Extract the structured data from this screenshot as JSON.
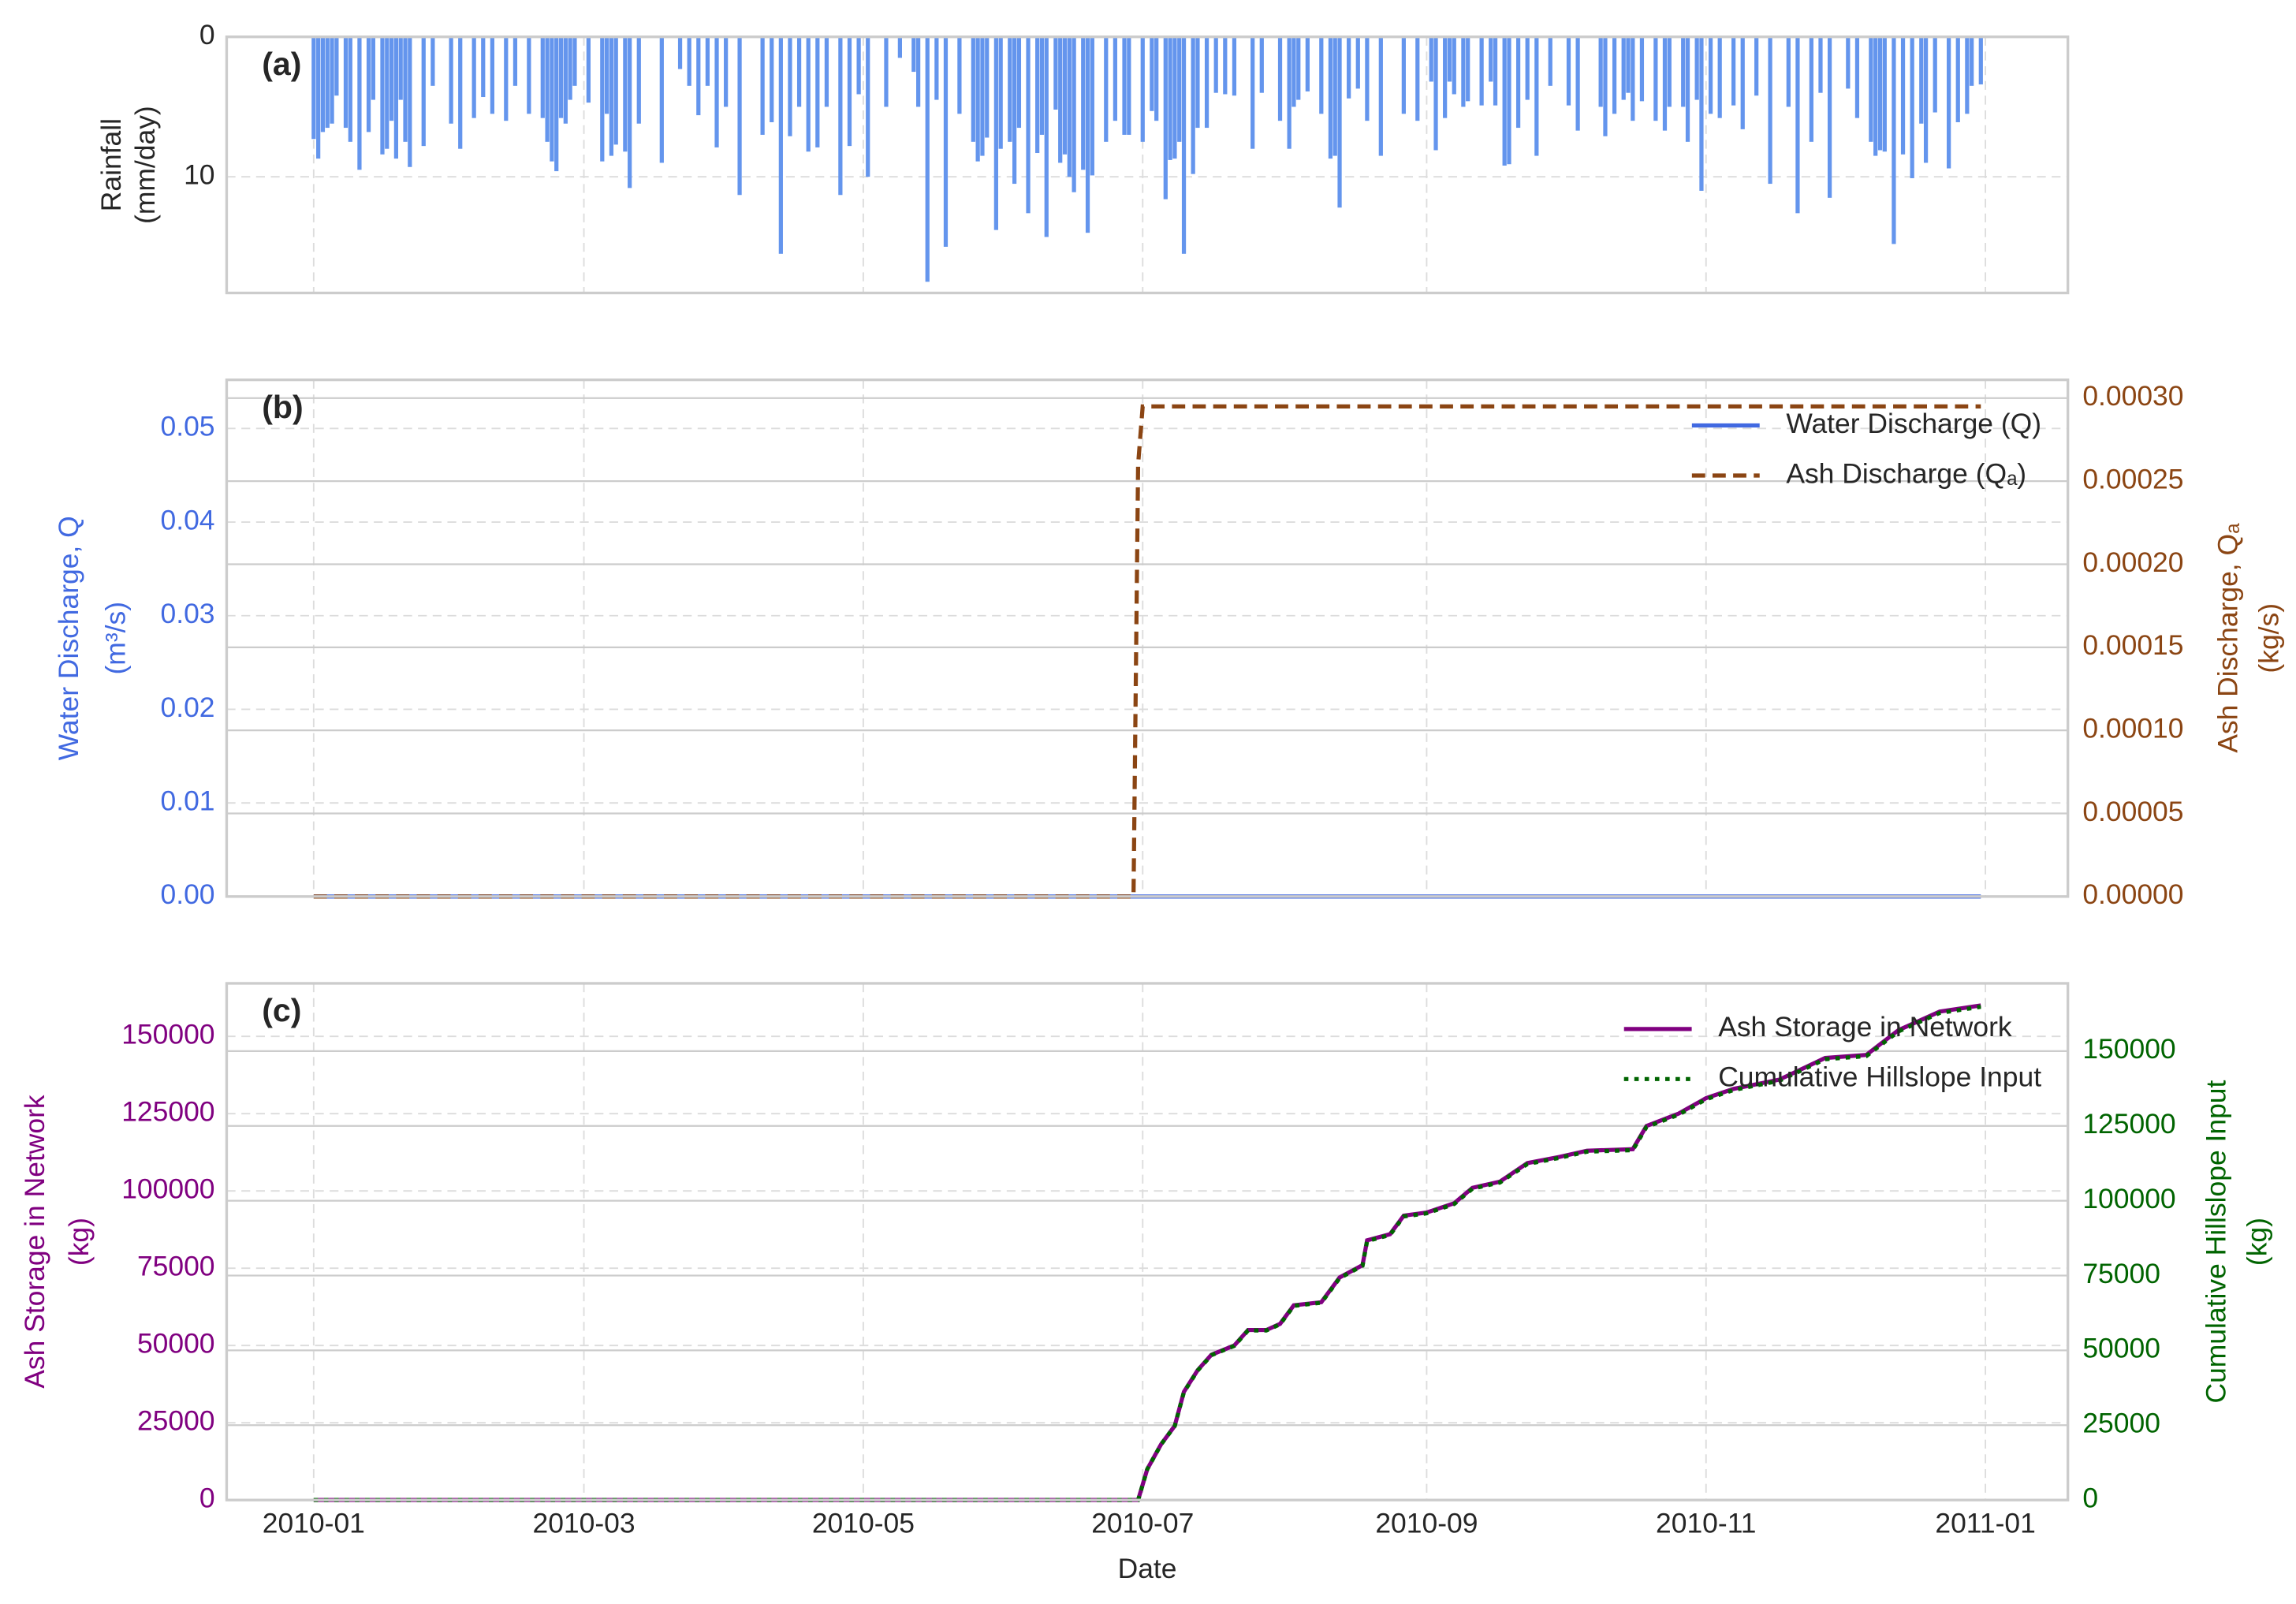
{
  "chart_data": [
    {
      "type": "bar",
      "panel_label": "(a)",
      "ylabel": [
        "Rainfall",
        "(mm/day)"
      ],
      "inverted": true,
      "color": "#6495ed",
      "grid": true,
      "xlim": [
        -19,
        383
      ],
      "xticks": [
        0,
        59,
        120,
        181,
        243,
        304,
        365
      ],
      "ylim": [
        0,
        18.3
      ],
      "yticks": [
        0,
        10
      ],
      "x": [
        0,
        1,
        2,
        3,
        4,
        5,
        7,
        8,
        10,
        12,
        13,
        15,
        16,
        17,
        18,
        19,
        20,
        21,
        24,
        26,
        30,
        32,
        35,
        37,
        39,
        42,
        44,
        47,
        50,
        51,
        52,
        53,
        54,
        55,
        56,
        57,
        60,
        63,
        64,
        65,
        66,
        68,
        69,
        71,
        76,
        80,
        82,
        84,
        86,
        88,
        90,
        93,
        98,
        100,
        102,
        104,
        106,
        108,
        110,
        112,
        115,
        117,
        119,
        121,
        125,
        128,
        131,
        132,
        134,
        136,
        138,
        141,
        144,
        145,
        146,
        147,
        149,
        150,
        152,
        153,
        154,
        156,
        158,
        159,
        160,
        162,
        163,
        164,
        165,
        166,
        168,
        169,
        170,
        173,
        175,
        177,
        178,
        181,
        183,
        184,
        186,
        187,
        188,
        189,
        190,
        192,
        193,
        195,
        197,
        199,
        201,
        205,
        207,
        211,
        213,
        214,
        215,
        217,
        220,
        222,
        223,
        224,
        226,
        228,
        230,
        233,
        238,
        241,
        244,
        245,
        247,
        248,
        249,
        251,
        252,
        255,
        257,
        258,
        260,
        261,
        263,
        265,
        267,
        270,
        274,
        276,
        281,
        282,
        284,
        286,
        287,
        288,
        290,
        293,
        295,
        296,
        299,
        300,
        302,
        303,
        305,
        307,
        310,
        312,
        315,
        318,
        322,
        324,
        327,
        329,
        331,
        335,
        337,
        340,
        341,
        342,
        343,
        345,
        347,
        349,
        351,
        352,
        354,
        357,
        359,
        361,
        362,
        364
      ],
      "values": [
        7.3,
        8.7,
        6.8,
        6.5,
        6.2,
        4.2,
        6.5,
        7.5,
        9.5,
        6.8,
        4.5,
        8.4,
        8,
        6,
        8.7,
        4.5,
        7.5,
        9.3,
        7.8,
        3.5,
        6.2,
        8,
        5.8,
        4.3,
        5.5,
        6,
        3.5,
        5.5,
        5.8,
        7.5,
        8.9,
        9.6,
        5.8,
        6.2,
        4.5,
        3.5,
        4.7,
        8.9,
        5.5,
        8.5,
        7.7,
        8.2,
        10.8,
        6.2,
        9,
        2.3,
        3.5,
        5.6,
        3.5,
        7.9,
        5,
        11.3,
        7,
        6.1,
        15.5,
        7.1,
        5,
        8.2,
        7.9,
        5,
        11.3,
        7.8,
        4.1,
        10,
        5,
        1.5,
        2.5,
        5,
        17.5,
        4.5,
        15,
        5.5,
        7.5,
        8.9,
        8.5,
        7.2,
        13.8,
        8,
        7.5,
        10.5,
        6.5,
        12.6,
        8.3,
        7,
        14.3,
        5.2,
        9,
        8.4,
        10,
        11.1,
        9.5,
        14,
        9.9,
        7.5,
        6,
        7,
        7,
        7.5,
        5.3,
        6,
        11.6,
        8.8,
        8.7,
        7.5,
        15.5,
        9.8,
        6.5,
        6.5,
        4,
        4.1,
        4.2,
        8,
        4,
        6,
        8,
        5,
        4.5,
        3.9,
        5.5,
        8.7,
        8.5,
        12.2,
        4.4,
        3.7,
        6,
        8.5,
        5.5,
        6,
        3.2,
        8.1,
        5.8,
        3.2,
        4.1,
        5,
        4.6,
        4.9,
        3.2,
        4.9,
        9.2,
        9.1,
        6.5,
        4.5,
        8.5,
        3.5,
        4.9,
        6.7,
        5,
        7.1,
        5.5,
        4.5,
        4,
        6,
        4.6,
        6,
        6.7,
        5,
        5,
        7.5,
        4.5,
        11,
        5.5,
        5.8,
        4.9,
        6.6,
        4.2,
        10.5,
        5,
        12.6,
        7.5,
        4,
        11.5,
        3.7,
        5.8,
        7.5,
        8.5,
        8.1,
        8.2,
        14.8,
        8.4,
        10.1,
        6.2,
        9,
        5.4,
        9.4,
        6.1,
        5.5,
        3.5,
        3.4
      ]
    },
    {
      "type": "line",
      "panel_label": "(b)",
      "ylabel": [
        "Water Discharge, Q",
        "(m³/s)"
      ],
      "y2label": [
        "Ash Discharge, Qₐ",
        "(kg/s)"
      ],
      "grid": true,
      "legend": "upper right",
      "xlim": [
        -19,
        383
      ],
      "xticks": [
        0,
        59,
        120,
        181,
        243,
        304,
        365
      ],
      "ylim": [
        0,
        0.0552
      ],
      "yticks": [
        {
          "value": 0,
          "label": "0.00"
        },
        0.01,
        0.02,
        0.03,
        0.04,
        0.05
      ],
      "y2lim": [
        0,
        0.000311
      ],
      "y2ticks": [
        {
          "value": 0,
          "label": "0.00000"
        },
        5e-05,
        {
          "value": 0.0001,
          "label": "0.00010"
        },
        0.00015,
        {
          "value": 0.0002,
          "label": "0.00020"
        },
        0.00025,
        {
          "value": 0.0003,
          "label": "0.00030"
        }
      ],
      "series": [
        {
          "name": "Water Discharge (Q)",
          "color": "#4169e1",
          "style": "solid",
          "x": [
            0,
            364
          ],
          "values": [
            0,
            0
          ]
        },
        {
          "name": "Ash Discharge (Qₐ)",
          "color": "#8b4513",
          "style": "dashed",
          "axis": "y2",
          "x": [
            0,
            179,
            180,
            181,
            364
          ],
          "values": [
            0,
            0,
            0.00026,
            0.000295,
            0.000295
          ]
        }
      ]
    },
    {
      "type": "line",
      "panel_label": "(c)",
      "ylabel": [
        "Ash Storage in Network",
        "(kg)"
      ],
      "y2label": [
        "Cumulative Hillslope Input",
        "(kg)"
      ],
      "xlabel": "Date",
      "grid": true,
      "legend": "upper right",
      "xlim": [
        -19,
        383
      ],
      "xticks": [
        {
          "value": 0,
          "label": "2010-01"
        },
        {
          "value": 59,
          "label": "2010-03"
        },
        {
          "value": 120,
          "label": "2010-05"
        },
        {
          "value": 181,
          "label": "2010-07"
        },
        {
          "value": 243,
          "label": "2010-09"
        },
        {
          "value": 304,
          "label": "2010-11"
        },
        {
          "value": 365,
          "label": "2011-01"
        }
      ],
      "ylim": [
        0,
        167143
      ],
      "yticks": [
        0,
        25000,
        50000,
        75000,
        100000,
        125000,
        150000
      ],
      "y2lim": [
        0,
        172623
      ],
      "y2ticks": [
        0,
        25000,
        50000,
        75000,
        100000,
        125000,
        150000
      ],
      "series": [
        {
          "name": "Ash Storage in Network",
          "color": "#800080",
          "style": "solid",
          "x": [
            0,
            180,
            182,
            185,
            188,
            190,
            193,
            196,
            201,
            204,
            208,
            211,
            214,
            220,
            224,
            229,
            230,
            235,
            238,
            243,
            249,
            253,
            259,
            265,
            272,
            278,
            288,
            291,
            298,
            304,
            310,
            320,
            330,
            339,
            346,
            355,
            364
          ],
          "values": [
            0,
            0,
            10000,
            18000,
            24000,
            35000,
            42000,
            47000,
            50000,
            55000,
            55000,
            57000,
            63000,
            64000,
            72000,
            76000,
            84000,
            86000,
            92000,
            93000,
            96000,
            101000,
            103000,
            109000,
            111000,
            113000,
            113500,
            121000,
            125000,
            130000,
            133000,
            136000,
            143000,
            144000,
            152000,
            158000,
            160000
          ]
        },
        {
          "name": "Cumulative Hillslope Input",
          "color": "#006400",
          "style": "dotted",
          "axis": "y2",
          "x": [
            0,
            180,
            182,
            185,
            188,
            190,
            193,
            196,
            201,
            204,
            208,
            211,
            214,
            220,
            224,
            229,
            230,
            235,
            238,
            243,
            249,
            253,
            259,
            265,
            272,
            278,
            288,
            291,
            298,
            304,
            310,
            320,
            330,
            339,
            346,
            355,
            364
          ],
          "values": [
            0,
            0,
            10300,
            18540,
            24720,
            36050,
            43260,
            48410,
            51500,
            56650,
            56650,
            58710,
            64890,
            65920,
            74160,
            78280,
            86520,
            88580,
            94760,
            95790,
            98880,
            104030,
            106090,
            112270,
            114330,
            116390,
            116905,
            124630,
            128750,
            133900,
            136990,
            140080,
            147290,
            148320,
            156560,
            162740,
            164800
          ]
        }
      ]
    }
  ]
}
